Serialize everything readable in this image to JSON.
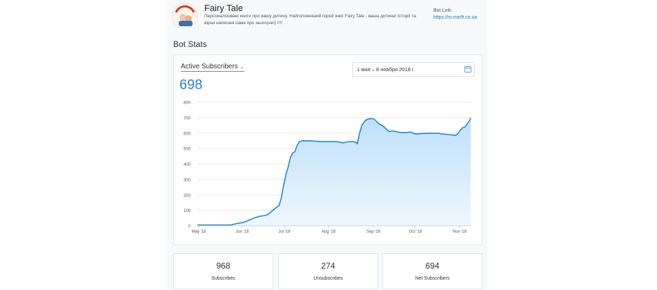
{
  "header": {
    "title": "Fairy Tale",
    "description": "Персоналізовані книги про вашу дитину. Найголовніший герой книг Fairy Tale - ваша дитина! Історії та вірші написані саме про нього(неї) !!!!",
    "bot_link_label": "Bot Link:",
    "bot_link": "https://m.me/ft.co.ua"
  },
  "section_title": "Bot Stats",
  "stats_card": {
    "metric_selector": "Active Subscribers",
    "metric_value": "698",
    "date_range": "1 мая – 8 ноября 2018 г."
  },
  "summary": [
    {
      "value": "968",
      "label": "Subscribes"
    },
    {
      "value": "274",
      "label": "Unsubscribes"
    },
    {
      "value": "694",
      "label": "Net Subscribers"
    }
  ],
  "icons": {
    "calendar": "calendar-icon",
    "chevron": "chevron-down-icon"
  },
  "colors": {
    "accent": "#2a7fd4",
    "line": "#1e88d4",
    "area": "#cfe8fb"
  },
  "chart_data": {
    "type": "area",
    "x_ticks": [
      "May '18",
      "Jun '18",
      "Jul '18",
      "Aug '18",
      "Sep '18",
      "Oct '18",
      "Nov '18"
    ],
    "yticks": [
      0,
      100,
      200,
      300,
      400,
      500,
      600,
      700,
      800
    ],
    "ylim": [
      0,
      800
    ],
    "grid": true,
    "series": [
      {
        "values": [
          [
            0,
            5
          ],
          [
            13,
            5
          ],
          [
            26,
            5
          ],
          [
            30,
            6
          ],
          [
            35,
            15
          ],
          [
            40,
            20
          ],
          [
            45,
            35
          ],
          [
            50,
            50
          ],
          [
            54,
            60
          ],
          [
            58,
            65
          ],
          [
            62,
            72
          ],
          [
            65,
            90
          ],
          [
            68,
            110
          ],
          [
            72,
            130
          ],
          [
            74,
            180
          ],
          [
            76,
            260
          ],
          [
            78,
            330
          ],
          [
            80,
            380
          ],
          [
            82,
            440
          ],
          [
            84,
            470
          ],
          [
            86,
            480
          ],
          [
            88,
            520
          ],
          [
            90,
            545
          ],
          [
            92,
            550
          ],
          [
            96,
            550
          ],
          [
            100,
            550
          ],
          [
            104,
            548
          ],
          [
            108,
            545
          ],
          [
            112,
            545
          ],
          [
            116,
            545
          ],
          [
            120,
            545
          ],
          [
            124,
            544
          ],
          [
            126,
            540
          ],
          [
            129,
            537
          ],
          [
            132,
            543
          ],
          [
            136,
            545
          ],
          [
            138,
            543
          ],
          [
            140,
            540
          ],
          [
            141,
            530
          ],
          [
            143,
            600
          ],
          [
            145,
            650
          ],
          [
            148,
            680
          ],
          [
            150,
            690
          ],
          [
            152,
            693
          ],
          [
            154,
            695
          ],
          [
            156,
            690
          ],
          [
            158,
            675
          ],
          [
            160,
            660
          ],
          [
            163,
            650
          ],
          [
            166,
            630
          ],
          [
            169,
            610
          ],
          [
            172,
            615
          ],
          [
            175,
            610
          ],
          [
            178,
            605
          ],
          [
            181,
            603
          ],
          [
            184,
            603
          ],
          [
            186,
            605
          ],
          [
            188,
            607
          ],
          [
            190,
            600
          ],
          [
            192,
            595
          ],
          [
            195,
            595
          ],
          [
            198,
            598
          ],
          [
            202,
            598
          ],
          [
            205,
            600
          ],
          [
            208,
            598
          ],
          [
            212,
            600
          ],
          [
            215,
            595
          ],
          [
            218,
            593
          ],
          [
            222,
            590
          ],
          [
            225,
            588
          ],
          [
            228,
            585
          ],
          [
            230,
            600
          ],
          [
            232,
            620
          ],
          [
            234,
            635
          ],
          [
            236,
            640
          ],
          [
            238,
            660
          ],
          [
            240,
            680
          ],
          [
            241,
            698
          ]
        ]
      }
    ]
  }
}
